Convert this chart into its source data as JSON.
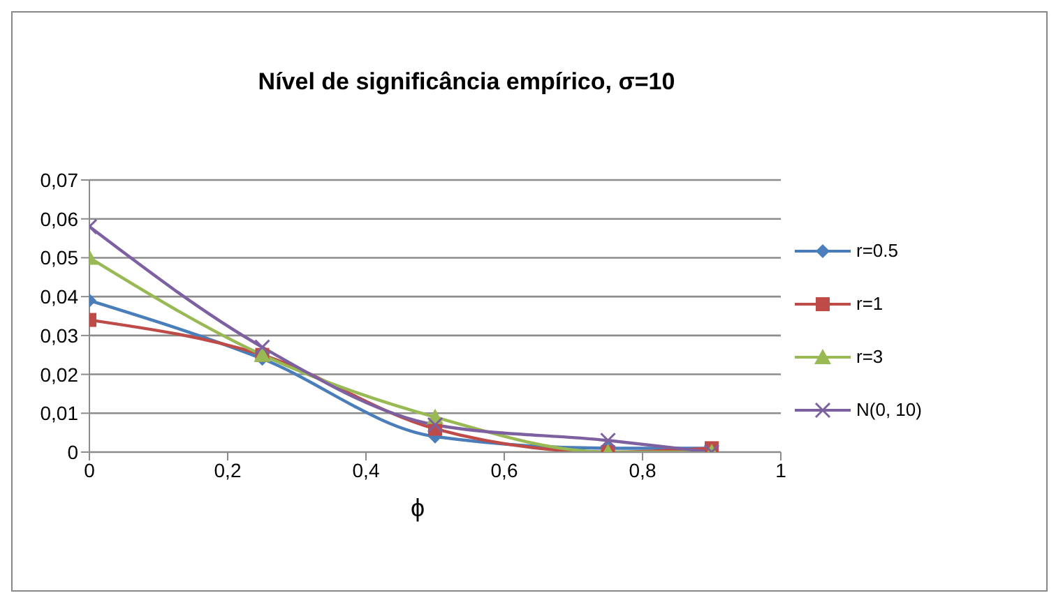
{
  "chart_data": {
    "type": "line",
    "title": "Nível de significância empírico, σ=10",
    "xlabel": "ϕ",
    "x": [
      0,
      0.25,
      0.5,
      0.75,
      0.9
    ],
    "series": [
      {
        "name": "r=0.5",
        "color": "#4a7ebb",
        "marker": "diamond",
        "values": [
          0.039,
          0.024,
          0.004,
          0.001,
          0.001
        ]
      },
      {
        "name": "r=1",
        "color": "#be4b48",
        "marker": "square",
        "values": [
          0.034,
          0.025,
          0.006,
          0,
          0.001
        ]
      },
      {
        "name": "r=3",
        "color": "#98b954",
        "marker": "triangle",
        "values": [
          0.05,
          0.025,
          0.009,
          0,
          0
        ]
      },
      {
        "name": "N(0, 10)",
        "color": "#7d60a0",
        "marker": "cross",
        "values": [
          0.058,
          0.027,
          0.007,
          0.003,
          0
        ]
      }
    ],
    "xlim": [
      0,
      1
    ],
    "xticks": [
      0,
      {
        "value": 0.2,
        "label": "0,2"
      },
      {
        "value": 0.4,
        "label": "0,4"
      },
      {
        "value": 0.6,
        "label": "0,6"
      },
      {
        "value": 0.8,
        "label": "0,8"
      },
      1
    ],
    "ylim": [
      0,
      0.07
    ],
    "yticks": [
      0,
      {
        "value": 0.01,
        "label": "0,01"
      },
      {
        "value": 0.02,
        "label": "0,02"
      },
      {
        "value": 0.03,
        "label": "0,03"
      },
      {
        "value": 0.04,
        "label": "0,04"
      },
      {
        "value": 0.05,
        "label": "0,05"
      },
      {
        "value": 0.06,
        "label": "0,06"
      },
      {
        "value": 0.07,
        "label": "0,07"
      }
    ],
    "grid": "y",
    "legend": "right",
    "line_style": "solid"
  }
}
